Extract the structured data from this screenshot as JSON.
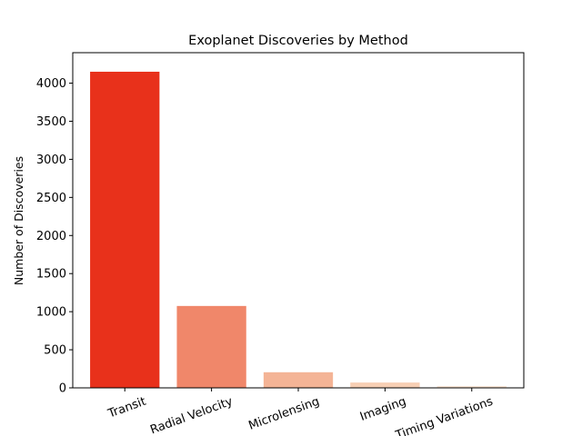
{
  "chart_data": {
    "type": "bar",
    "title": "Exoplanet Discoveries by Method",
    "xlabel": "",
    "ylabel": "Number of Discoveries",
    "categories": [
      "Transit",
      "Radial Velocity",
      "Microlensing",
      "Imaging",
      "Timing Variations"
    ],
    "values": [
      4150,
      1075,
      205,
      70,
      22
    ],
    "colors": [
      "#e8311b",
      "#f0876a",
      "#f4b496",
      "#f7cfb4",
      "#fae3d0"
    ],
    "ylim": [
      0,
      4400
    ],
    "yticks": [
      0,
      500,
      1000,
      1500,
      2000,
      2500,
      3000,
      3500,
      4000
    ],
    "grid": false,
    "xtick_rotation": -20
  }
}
